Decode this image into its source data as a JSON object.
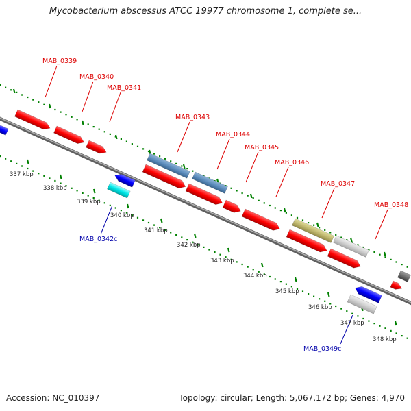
{
  "title": "Mycobacterium abscessus ATCC 19977 chromosome 1, complete se...",
  "footer": {
    "accession": "Accession: NC_010397",
    "topology": "Topology: circular; Length: 5,067,172 bp; Genes: 4,970"
  },
  "colors": {
    "forward_label": "#dd0000",
    "reverse_label": "#0000aa",
    "backbone": "#808080",
    "ticks": "#008000"
  },
  "kbp_labels": [
    "337 kbp",
    "338 kbp",
    "339 kbp",
    "340 kbp",
    "341 kbp",
    "342 kbp",
    "343 kbp",
    "344 kbp",
    "345 kbp",
    "346 kbp",
    "347 kbp",
    "348 kbp"
  ],
  "gene_labels": [
    {
      "text": "MAB_0339",
      "strand": "forward"
    },
    {
      "text": "MAB_0340",
      "strand": "forward"
    },
    {
      "text": "MAB_0341",
      "strand": "forward"
    },
    {
      "text": "MAB_0343",
      "strand": "forward"
    },
    {
      "text": "MAB_0344",
      "strand": "forward"
    },
    {
      "text": "MAB_0345",
      "strand": "forward"
    },
    {
      "text": "MAB_0346",
      "strand": "forward"
    },
    {
      "text": "MAB_0347",
      "strand": "forward"
    },
    {
      "text": "MAB_0348",
      "strand": "forward"
    },
    {
      "text": "MAB_0342c",
      "strand": "reverse"
    },
    {
      "text": "MAB_0349c",
      "strand": "reverse"
    }
  ]
}
